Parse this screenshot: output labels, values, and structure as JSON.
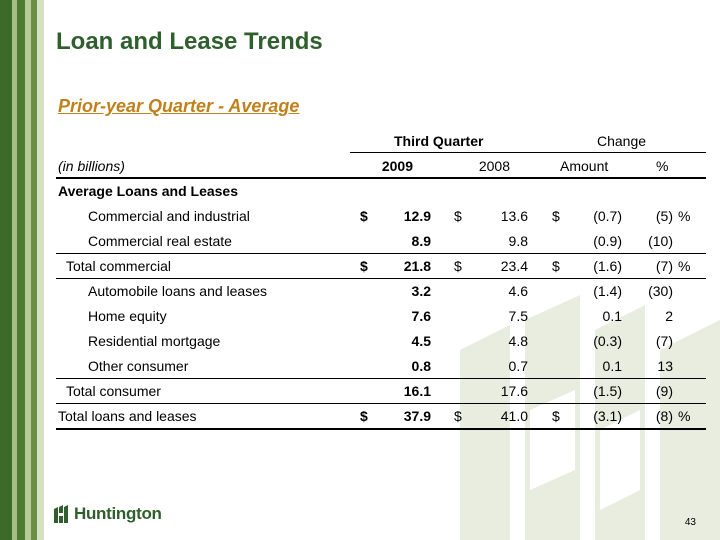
{
  "slide": {
    "title": "Loan and Lease Trends",
    "subtitle": "Prior-year Quarter - Average",
    "page_number": "43",
    "logo_text": "Huntington"
  },
  "table": {
    "group_header_quarter": "Third Quarter",
    "group_header_change": "Change",
    "units_label": "(in billions)",
    "col_2009": "2009",
    "col_2008": "2008",
    "col_amount": "Amount",
    "col_pct": "%",
    "section_label": "Average Loans and Leases",
    "rows": [
      {
        "label": "Commercial and industrial",
        "d1": "$",
        "v1": "12.9",
        "d2": "$",
        "v2": "13.6",
        "d3": "$",
        "amount": "(0.7)",
        "pct": "(5)",
        "pct_sign": "%"
      },
      {
        "label": "Commercial real estate",
        "d1": "",
        "v1": "8.9",
        "d2": "",
        "v2": "9.8",
        "d3": "",
        "amount": "(0.9)",
        "pct": "(10)",
        "pct_sign": ""
      },
      {
        "label": "Total commercial",
        "d1": "$",
        "v1": "21.8",
        "d2": "$",
        "v2": "23.4",
        "d3": "$",
        "amount": "(1.6)",
        "pct": "(7)",
        "pct_sign": "%"
      },
      {
        "label": "Automobile loans and leases",
        "d1": "",
        "v1": "3.2",
        "d2": "",
        "v2": "4.6",
        "d3": "",
        "amount": "(1.4)",
        "pct": "(30)",
        "pct_sign": ""
      },
      {
        "label": "Home equity",
        "d1": "",
        "v1": "7.6",
        "d2": "",
        "v2": "7.5",
        "d3": "",
        "amount": "0.1",
        "pct": "2",
        "pct_sign": ""
      },
      {
        "label": "Residential mortgage",
        "d1": "",
        "v1": "4.5",
        "d2": "",
        "v2": "4.8",
        "d3": "",
        "amount": "(0.3)",
        "pct": "(7)",
        "pct_sign": ""
      },
      {
        "label": "Other consumer",
        "d1": "",
        "v1": "0.8",
        "d2": "",
        "v2": "0.7",
        "d3": "",
        "amount": "0.1",
        "pct": "13",
        "pct_sign": ""
      },
      {
        "label": "Total consumer",
        "d1": "",
        "v1": "16.1",
        "d2": "",
        "v2": "17.6",
        "d3": "",
        "amount": "(1.5)",
        "pct": "(9)",
        "pct_sign": ""
      },
      {
        "label": "Total loans and leases",
        "d1": "$",
        "v1": "37.9",
        "d2": "$",
        "v2": "41.0",
        "d3": "$",
        "amount": "(3.1)",
        "pct": "(8)",
        "pct_sign": "%"
      }
    ]
  },
  "colors": {
    "title": "#2e5f2c",
    "subtitle": "#c2801c",
    "stripe_dark": "#3c6a28",
    "watermark": "#e9eedf"
  }
}
